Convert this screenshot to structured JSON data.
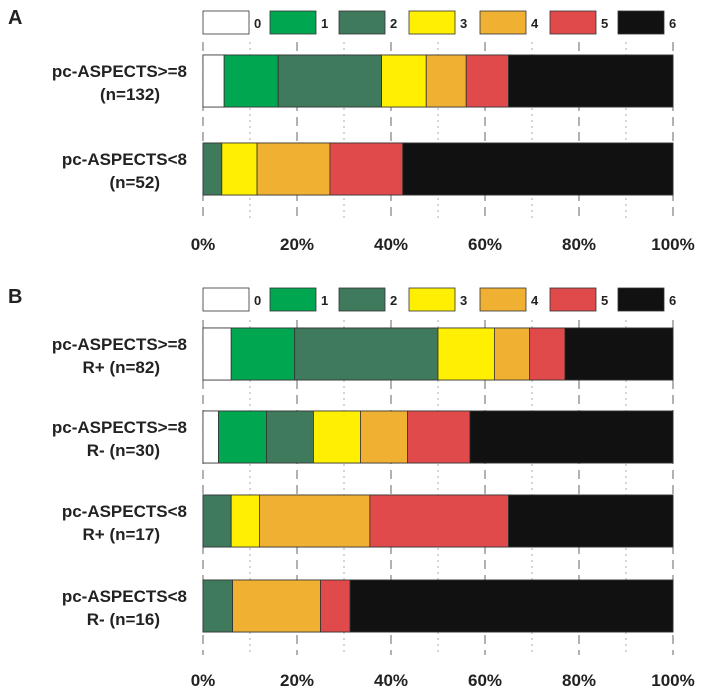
{
  "legend": {
    "labels": [
      "0",
      "1",
      "2",
      "3",
      "4",
      "5",
      "6"
    ],
    "colors": [
      "#ffffff",
      "#00a650",
      "#3f7a5c",
      "#ffef00",
      "#f0b132",
      "#e04a4a",
      "#111111"
    ]
  },
  "chart_data": [
    {
      "type": "bar",
      "orientation": "horizontal",
      "stacked": "percent",
      "panel": "A",
      "categories": [
        "pc-ASPECTS>=8|(n=132)",
        "pc-ASPECTS<8|(n=52)"
      ],
      "series": [
        {
          "name": "0",
          "values": [
            4.5,
            0
          ]
        },
        {
          "name": "1",
          "values": [
            11.5,
            0
          ]
        },
        {
          "name": "2",
          "values": [
            22,
            4
          ]
        },
        {
          "name": "3",
          "values": [
            9.5,
            7.5
          ]
        },
        {
          "name": "4",
          "values": [
            8.5,
            15.5
          ]
        },
        {
          "name": "5",
          "values": [
            9,
            15.5
          ]
        },
        {
          "name": "6",
          "values": [
            35,
            57.5
          ]
        }
      ],
      "xlim": [
        0,
        100
      ],
      "xticks": [
        "0%",
        "20%",
        "40%",
        "60%",
        "80%",
        "100%"
      ],
      "grid": "dashed-vertical"
    },
    {
      "type": "bar",
      "orientation": "horizontal",
      "stacked": "percent",
      "panel": "B",
      "categories": [
        "pc-ASPECTS>=8|R+ (n=82)",
        "pc-ASPECTS>=8|R- (n=30)",
        "pc-ASPECTS<8|R+ (n=17)",
        "pc-ASPECTS<8|R- (n=16)"
      ],
      "series": [
        {
          "name": "0",
          "values": [
            6,
            3.3,
            0,
            0
          ]
        },
        {
          "name": "1",
          "values": [
            13.5,
            10.2,
            0,
            0
          ]
        },
        {
          "name": "2",
          "values": [
            30.5,
            10,
            6,
            6.3
          ]
        },
        {
          "name": "3",
          "values": [
            12,
            10,
            6,
            0
          ]
        },
        {
          "name": "4",
          "values": [
            7.5,
            10,
            23.5,
            18.7
          ]
        },
        {
          "name": "5",
          "values": [
            7.5,
            13.3,
            29.5,
            6.3
          ]
        },
        {
          "name": "6",
          "values": [
            23,
            43.2,
            35,
            68.7
          ]
        }
      ],
      "xlim": [
        0,
        100
      ],
      "xticks": [
        "0%",
        "20%",
        "40%",
        "60%",
        "80%",
        "100%"
      ],
      "grid": "dashed-vertical"
    }
  ]
}
